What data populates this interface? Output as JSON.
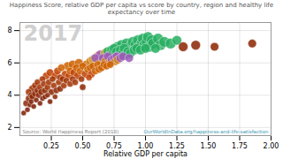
{
  "chart_data": {
    "type": "scatter",
    "title": "Happiness Score, relative GDP per capita vs score by country, region and healthy life expectancy over time",
    "xlabel": "Relative GDP per capita",
    "annotations": [
      "2017",
      "Source: World Happiness Report (2018)",
      "OurWorldInData.org/happiness-and-life-satisfaction"
    ],
    "xlim": [
      0.0,
      2.0
    ],
    "ylim": [
      1.5,
      8.5
    ],
    "xticks": [
      0.25,
      {
        "value": 0.5,
        "label": "0.50"
      },
      0.75,
      {
        "value": 1.0,
        "label": "1.00"
      },
      1.25,
      {
        "value": 1.5,
        "label": "1.50"
      },
      1.75,
      {
        "value": 2.0,
        "label": "2.00"
      }
    ],
    "yticks": [
      2,
      4,
      6,
      8
    ],
    "grid": true,
    "x": [
      0.03,
      0.05,
      0.06,
      0.07,
      0.07,
      0.08,
      0.09,
      0.09,
      0.1,
      0.1,
      0.11,
      0.12,
      0.12,
      0.13,
      0.14,
      0.14,
      0.15,
      0.16,
      0.16,
      0.17,
      0.18,
      0.18,
      0.19,
      0.2,
      0.2,
      0.21,
      0.22,
      0.22,
      0.23,
      0.24,
      0.24,
      0.25,
      0.26,
      0.27,
      0.28,
      0.28,
      0.29,
      0.3,
      0.31,
      0.32,
      0.32,
      0.33,
      0.34,
      0.35,
      0.36,
      0.37,
      0.38,
      0.39,
      0.4,
      0.4,
      0.42,
      0.42,
      0.43,
      0.44,
      0.45,
      0.46,
      0.47,
      0.48,
      0.49,
      0.5,
      0.5,
      0.52,
      0.53,
      0.54,
      0.55,
      0.56,
      0.56,
      0.57,
      0.58,
      0.58,
      0.6,
      0.6,
      0.62,
      0.62,
      0.63,
      0.64,
      0.65,
      0.65,
      0.66,
      0.67,
      0.68,
      0.68,
      0.69,
      0.7,
      0.7,
      0.71,
      0.72,
      0.72,
      0.73,
      0.73,
      0.74,
      0.75,
      0.75,
      0.76,
      0.77,
      0.77,
      0.78,
      0.78,
      0.79,
      0.8,
      0.8,
      0.81,
      0.82,
      0.82,
      0.83,
      0.84,
      0.85,
      0.86,
      0.87,
      0.88,
      0.88,
      0.9,
      0.91,
      0.92,
      0.93,
      0.94,
      0.95,
      0.96,
      0.97,
      0.98,
      0.99,
      1.0,
      1.01,
      1.02,
      1.03,
      1.05,
      1.06,
      1.08,
      1.1,
      1.12,
      1.15,
      1.2,
      1.25,
      1.3,
      1.4,
      1.55,
      1.85
    ],
    "y": [
      2.9,
      3.5,
      3.1,
      3.8,
      4.2,
      3.4,
      4.0,
      3.6,
      4.4,
      3.9,
      3.3,
      4.6,
      4.1,
      3.7,
      4.3,
      4.8,
      4.0,
      3.5,
      4.5,
      4.2,
      3.8,
      5.0,
      4.7,
      4.3,
      3.9,
      5.2,
      4.5,
      4.0,
      4.8,
      3.6,
      5.4,
      4.2,
      5.0,
      4.6,
      3.9,
      5.2,
      4.3,
      5.5,
      4.8,
      4.4,
      5.1,
      5.7,
      5.0,
      4.6,
      5.3,
      4.9,
      5.8,
      5.2,
      4.7,
      5.5,
      5.0,
      5.9,
      5.4,
      4.8,
      5.7,
      5.2,
      6.0,
      5.5,
      5.0,
      5.8,
      4.5,
      5.3,
      5.9,
      5.6,
      5.1,
      6.1,
      5.7,
      5.3,
      6.2,
      5.8,
      5.5,
      6.3,
      5.9,
      6.4,
      5.6,
      6.5,
      6.0,
      5.7,
      6.3,
      5.9,
      6.6,
      6.1,
      5.8,
      6.4,
      6.7,
      6.0,
      6.5,
      5.9,
      6.8,
      6.2,
      6.6,
      6.9,
      6.3,
      6.1,
      6.7,
      6.4,
      7.0,
      6.2,
      6.5,
      6.8,
      6.3,
      7.1,
      6.6,
      6.4,
      6.9,
      6.5,
      7.2,
      6.7,
      6.3,
      7.0,
      6.6,
      7.3,
      6.8,
      7.1,
      6.9,
      7.4,
      7.0,
      6.8,
      7.2,
      7.5,
      7.1,
      6.9,
      7.3,
      7.6,
      7.0,
      7.4,
      7.2,
      6.9,
      7.5,
      7.1,
      7.3,
      7.2,
      7.4,
      7.0,
      7.1,
      7.0,
      7.2
    ],
    "sizes": [
      5,
      6,
      5,
      6,
      6,
      5,
      6,
      5,
      7,
      6,
      5,
      6,
      6,
      5,
      6,
      6,
      6,
      5,
      6,
      6,
      5,
      6,
      6,
      6,
      5,
      7,
      6,
      5,
      6,
      5,
      7,
      6,
      6,
      6,
      5,
      7,
      6,
      7,
      6,
      6,
      6,
      7,
      6,
      6,
      7,
      6,
      8,
      7,
      6,
      7,
      6,
      8,
      7,
      6,
      7,
      7,
      8,
      7,
      6,
      7,
      6,
      7,
      8,
      7,
      6,
      8,
      7,
      7,
      8,
      7,
      7,
      8,
      7,
      9,
      7,
      9,
      8,
      7,
      8,
      7,
      9,
      8,
      7,
      8,
      9,
      8,
      9,
      7,
      9,
      8,
      9,
      9,
      8,
      8,
      9,
      8,
      10,
      8,
      9,
      9,
      8,
      10,
      9,
      8,
      9,
      9,
      10,
      9,
      8,
      10,
      9,
      10,
      9,
      10,
      9,
      10,
      10,
      9,
      10,
      10,
      10,
      9,
      10,
      10,
      10,
      10,
      10,
      9,
      10,
      10,
      10,
      10,
      9,
      9,
      9,
      8,
      8
    ],
    "colors": [
      "#7b1a00",
      "#8b2500",
      "#7b1a00",
      "#8b2500",
      "#a03000",
      "#7b1a00",
      "#8b2500",
      "#7b1a00",
      "#a03000",
      "#8b2500",
      "#7b1a00",
      "#a03000",
      "#8b2500",
      "#7b1a00",
      "#8b2500",
      "#a03000",
      "#8b2500",
      "#7b1a00",
      "#a03000",
      "#8b2500",
      "#7b1a00",
      "#a03000",
      "#a03000",
      "#8b2500",
      "#7b1a00",
      "#c04000",
      "#a03000",
      "#8b2500",
      "#a03000",
      "#7b1a00",
      "#c04000",
      "#8b2500",
      "#a03000",
      "#a03000",
      "#8b2500",
      "#c04000",
      "#8b2500",
      "#c04000",
      "#a03000",
      "#8b2500",
      "#a03000",
      "#cd6000",
      "#a03000",
      "#a03000",
      "#c04000",
      "#a03000",
      "#cd6000",
      "#c04000",
      "#a03000",
      "#cd6000",
      "#a03000",
      "#cd6000",
      "#c04000",
      "#a03000",
      "#cd6000",
      "#c04000",
      "#cd6000",
      "#cd6000",
      "#a03000",
      "#cd6000",
      "#8b2500",
      "#c04000",
      "#cd6000",
      "#cd6000",
      "#c04000",
      "#cd8020",
      "#cd6000",
      "#c04000",
      "#d4a020",
      "#cd6000",
      "#cd6000",
      "#9b59b6",
      "#cd6000",
      "#d4a020",
      "#cd6000",
      "#9b59b6",
      "#cd8020",
      "#cd6000",
      "#9b59b6",
      "#cd6000",
      "#d4a020",
      "#cd8020",
      "#cd6000",
      "#9b59b6",
      "#27ae60",
      "#cd8020",
      "#9b59b6",
      "#cd6000",
      "#27ae60",
      "#9b59b6",
      "#27ae60",
      "#27ae60",
      "#9b59b6",
      "#cd8020",
      "#27ae60",
      "#9b59b6",
      "#27ae60",
      "#cd8020",
      "#9b59b6",
      "#27ae60",
      "#9b59b6",
      "#27ae60",
      "#27ae60",
      "#9b59b6",
      "#27ae60",
      "#27ae60",
      "#27ae60",
      "#27ae60",
      "#9b59b6",
      "#27ae60",
      "#27ae60",
      "#27ae60",
      "#27ae60",
      "#27ae60",
      "#27ae60",
      "#27ae60",
      "#27ae60",
      "#27ae60",
      "#27ae60",
      "#27ae60",
      "#27ae60",
      "#27ae60",
      "#27ae60",
      "#27ae60",
      "#27ae60",
      "#27ae60",
      "#27ae60",
      "#27ae60",
      "#27ae60",
      "#27ae60",
      "#27ae60",
      "#27ae60",
      "#27ae60",
      "#8b2500",
      "#8b2500",
      "#8b2500",
      "#8b2500"
    ]
  }
}
